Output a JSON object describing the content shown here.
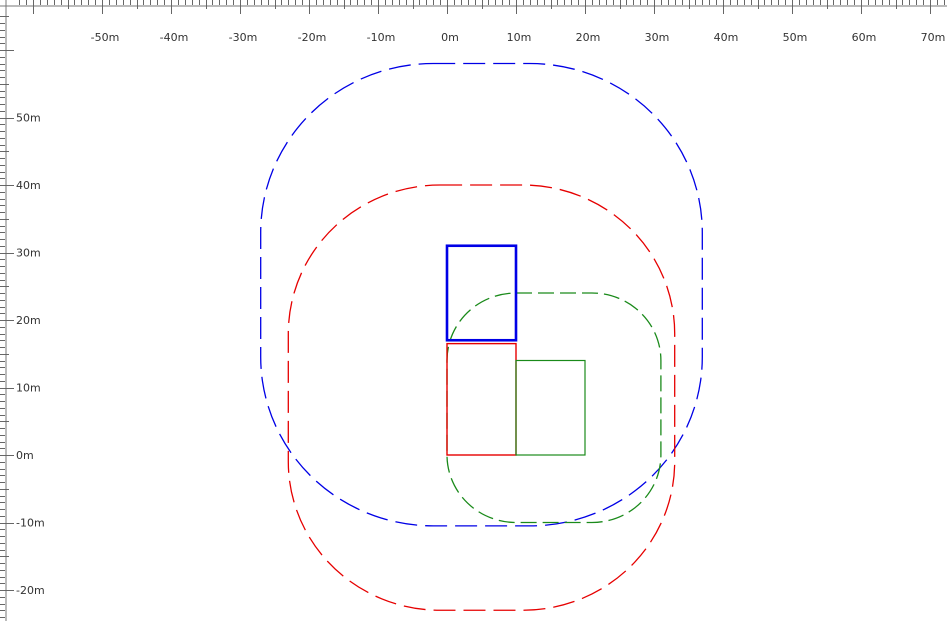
{
  "rulers": {
    "unit_suffix": "m",
    "top_labels": [
      "-50m",
      "-40m",
      "-30m",
      "-20m",
      "-10m",
      "0m",
      "10m",
      "20m",
      "30m",
      "40m",
      "50m",
      "60m",
      "70m"
    ],
    "left_labels": [
      "50m",
      "40m",
      "30m",
      "20m",
      "10m",
      "0m",
      "-10m",
      "-20m"
    ]
  },
  "scene": {
    "colors": {
      "blue": "#0000e6",
      "red": "#e60000",
      "green": "#1a8a1a"
    },
    "boxes": [
      {
        "name": "blue-box",
        "color": "blue",
        "x_m": [
          0,
          10
        ],
        "y_m": [
          17,
          31
        ],
        "stroke": "thick"
      },
      {
        "name": "red-box",
        "color": "red",
        "x_m": [
          0,
          10
        ],
        "y_m": [
          0,
          16.5
        ],
        "stroke": "normal"
      },
      {
        "name": "green-box",
        "color": "green",
        "x_m": [
          10,
          20
        ],
        "y_m": [
          0,
          14
        ],
        "stroke": "thin"
      }
    ],
    "zones": [
      {
        "name": "blue-zone",
        "color": "blue",
        "x_m": [
          -27,
          37
        ],
        "y_m": [
          -10.5,
          58
        ],
        "corner_m": 25
      },
      {
        "name": "red-zone",
        "color": "red",
        "x_m": [
          -23,
          33
        ],
        "y_m": [
          -23,
          40
        ],
        "corner_m": 22
      },
      {
        "name": "green-zone",
        "color": "green",
        "x_m": [
          0,
          31
        ],
        "y_m": [
          -10,
          24
        ],
        "corner_m": 10
      }
    ]
  }
}
